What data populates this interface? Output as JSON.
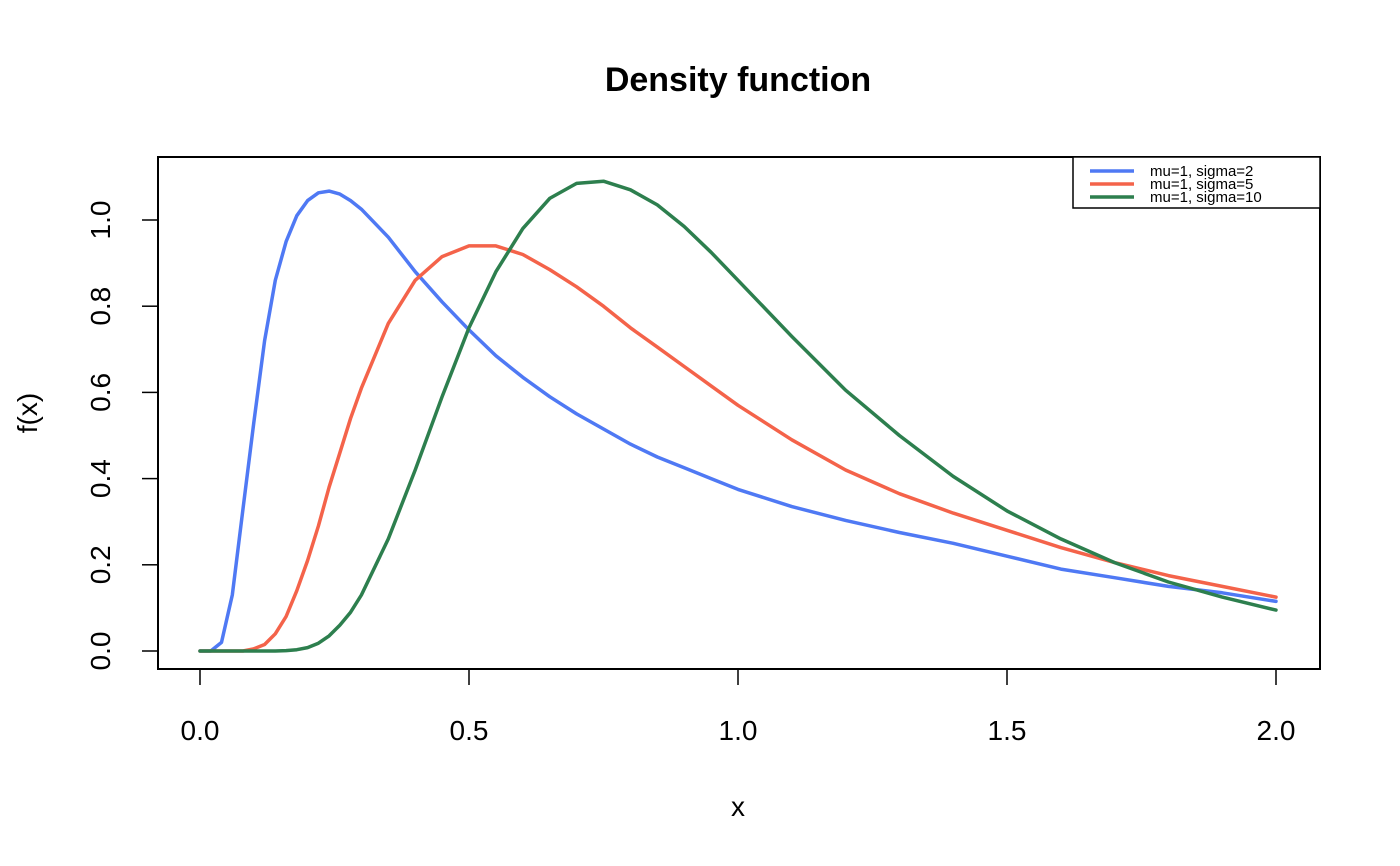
{
  "chart_data": {
    "type": "line",
    "title": "Density function",
    "xlabel": "x",
    "ylabel": "f(x)",
    "xlim": [
      0,
      2
    ],
    "ylim": [
      0,
      1.1
    ],
    "x_ticks": [
      "0.0",
      "0.5",
      "1.0",
      "1.5",
      "2.0"
    ],
    "y_ticks": [
      "0.0",
      "0.2",
      "0.4",
      "0.6",
      "0.8",
      "1.0"
    ],
    "grid": false,
    "legend_position": "top-right",
    "x": [
      0.0,
      0.02,
      0.04,
      0.06,
      0.08,
      0.1,
      0.12,
      0.14,
      0.16,
      0.18,
      0.2,
      0.22,
      0.24,
      0.26,
      0.28,
      0.3,
      0.35,
      0.4,
      0.45,
      0.5,
      0.55,
      0.6,
      0.65,
      0.7,
      0.75,
      0.8,
      0.85,
      0.9,
      0.95,
      1.0,
      1.1,
      1.2,
      1.3,
      1.4,
      1.5,
      1.6,
      1.7,
      1.8,
      1.9,
      2.0
    ],
    "series": [
      {
        "name": "mu=1, sigma=2",
        "color": "#4f79f4",
        "values": [
          0.0,
          0.0,
          0.02,
          0.13,
          0.33,
          0.53,
          0.72,
          0.86,
          0.95,
          1.01,
          1.045,
          1.063,
          1.067,
          1.06,
          1.045,
          1.025,
          0.96,
          0.88,
          0.81,
          0.745,
          0.685,
          0.635,
          0.59,
          0.55,
          0.515,
          0.48,
          0.45,
          0.425,
          0.4,
          0.375,
          0.335,
          0.303,
          0.275,
          0.25,
          0.22,
          0.19,
          0.17,
          0.15,
          0.135,
          0.115
        ]
      },
      {
        "name": "mu=1, sigma=5",
        "color": "#f4634a",
        "values": [
          0.0,
          0.0,
          0.0,
          0.0,
          0.0,
          0.005,
          0.015,
          0.04,
          0.08,
          0.14,
          0.21,
          0.29,
          0.38,
          0.46,
          0.54,
          0.61,
          0.76,
          0.86,
          0.915,
          0.94,
          0.94,
          0.92,
          0.885,
          0.845,
          0.8,
          0.75,
          0.705,
          0.66,
          0.615,
          0.57,
          0.49,
          0.42,
          0.365,
          0.32,
          0.28,
          0.24,
          0.205,
          0.175,
          0.15,
          0.125
        ]
      },
      {
        "name": "mu=1, sigma=10",
        "color": "#2d7f4e",
        "values": [
          0.0,
          0.0,
          0.0,
          0.0,
          0.0,
          0.0,
          0.0,
          0.0,
          0.001,
          0.003,
          0.008,
          0.018,
          0.035,
          0.06,
          0.09,
          0.13,
          0.26,
          0.42,
          0.59,
          0.75,
          0.88,
          0.98,
          1.05,
          1.085,
          1.09,
          1.07,
          1.035,
          0.985,
          0.925,
          0.86,
          0.73,
          0.605,
          0.5,
          0.405,
          0.325,
          0.26,
          0.205,
          0.16,
          0.125,
          0.095
        ]
      }
    ]
  }
}
